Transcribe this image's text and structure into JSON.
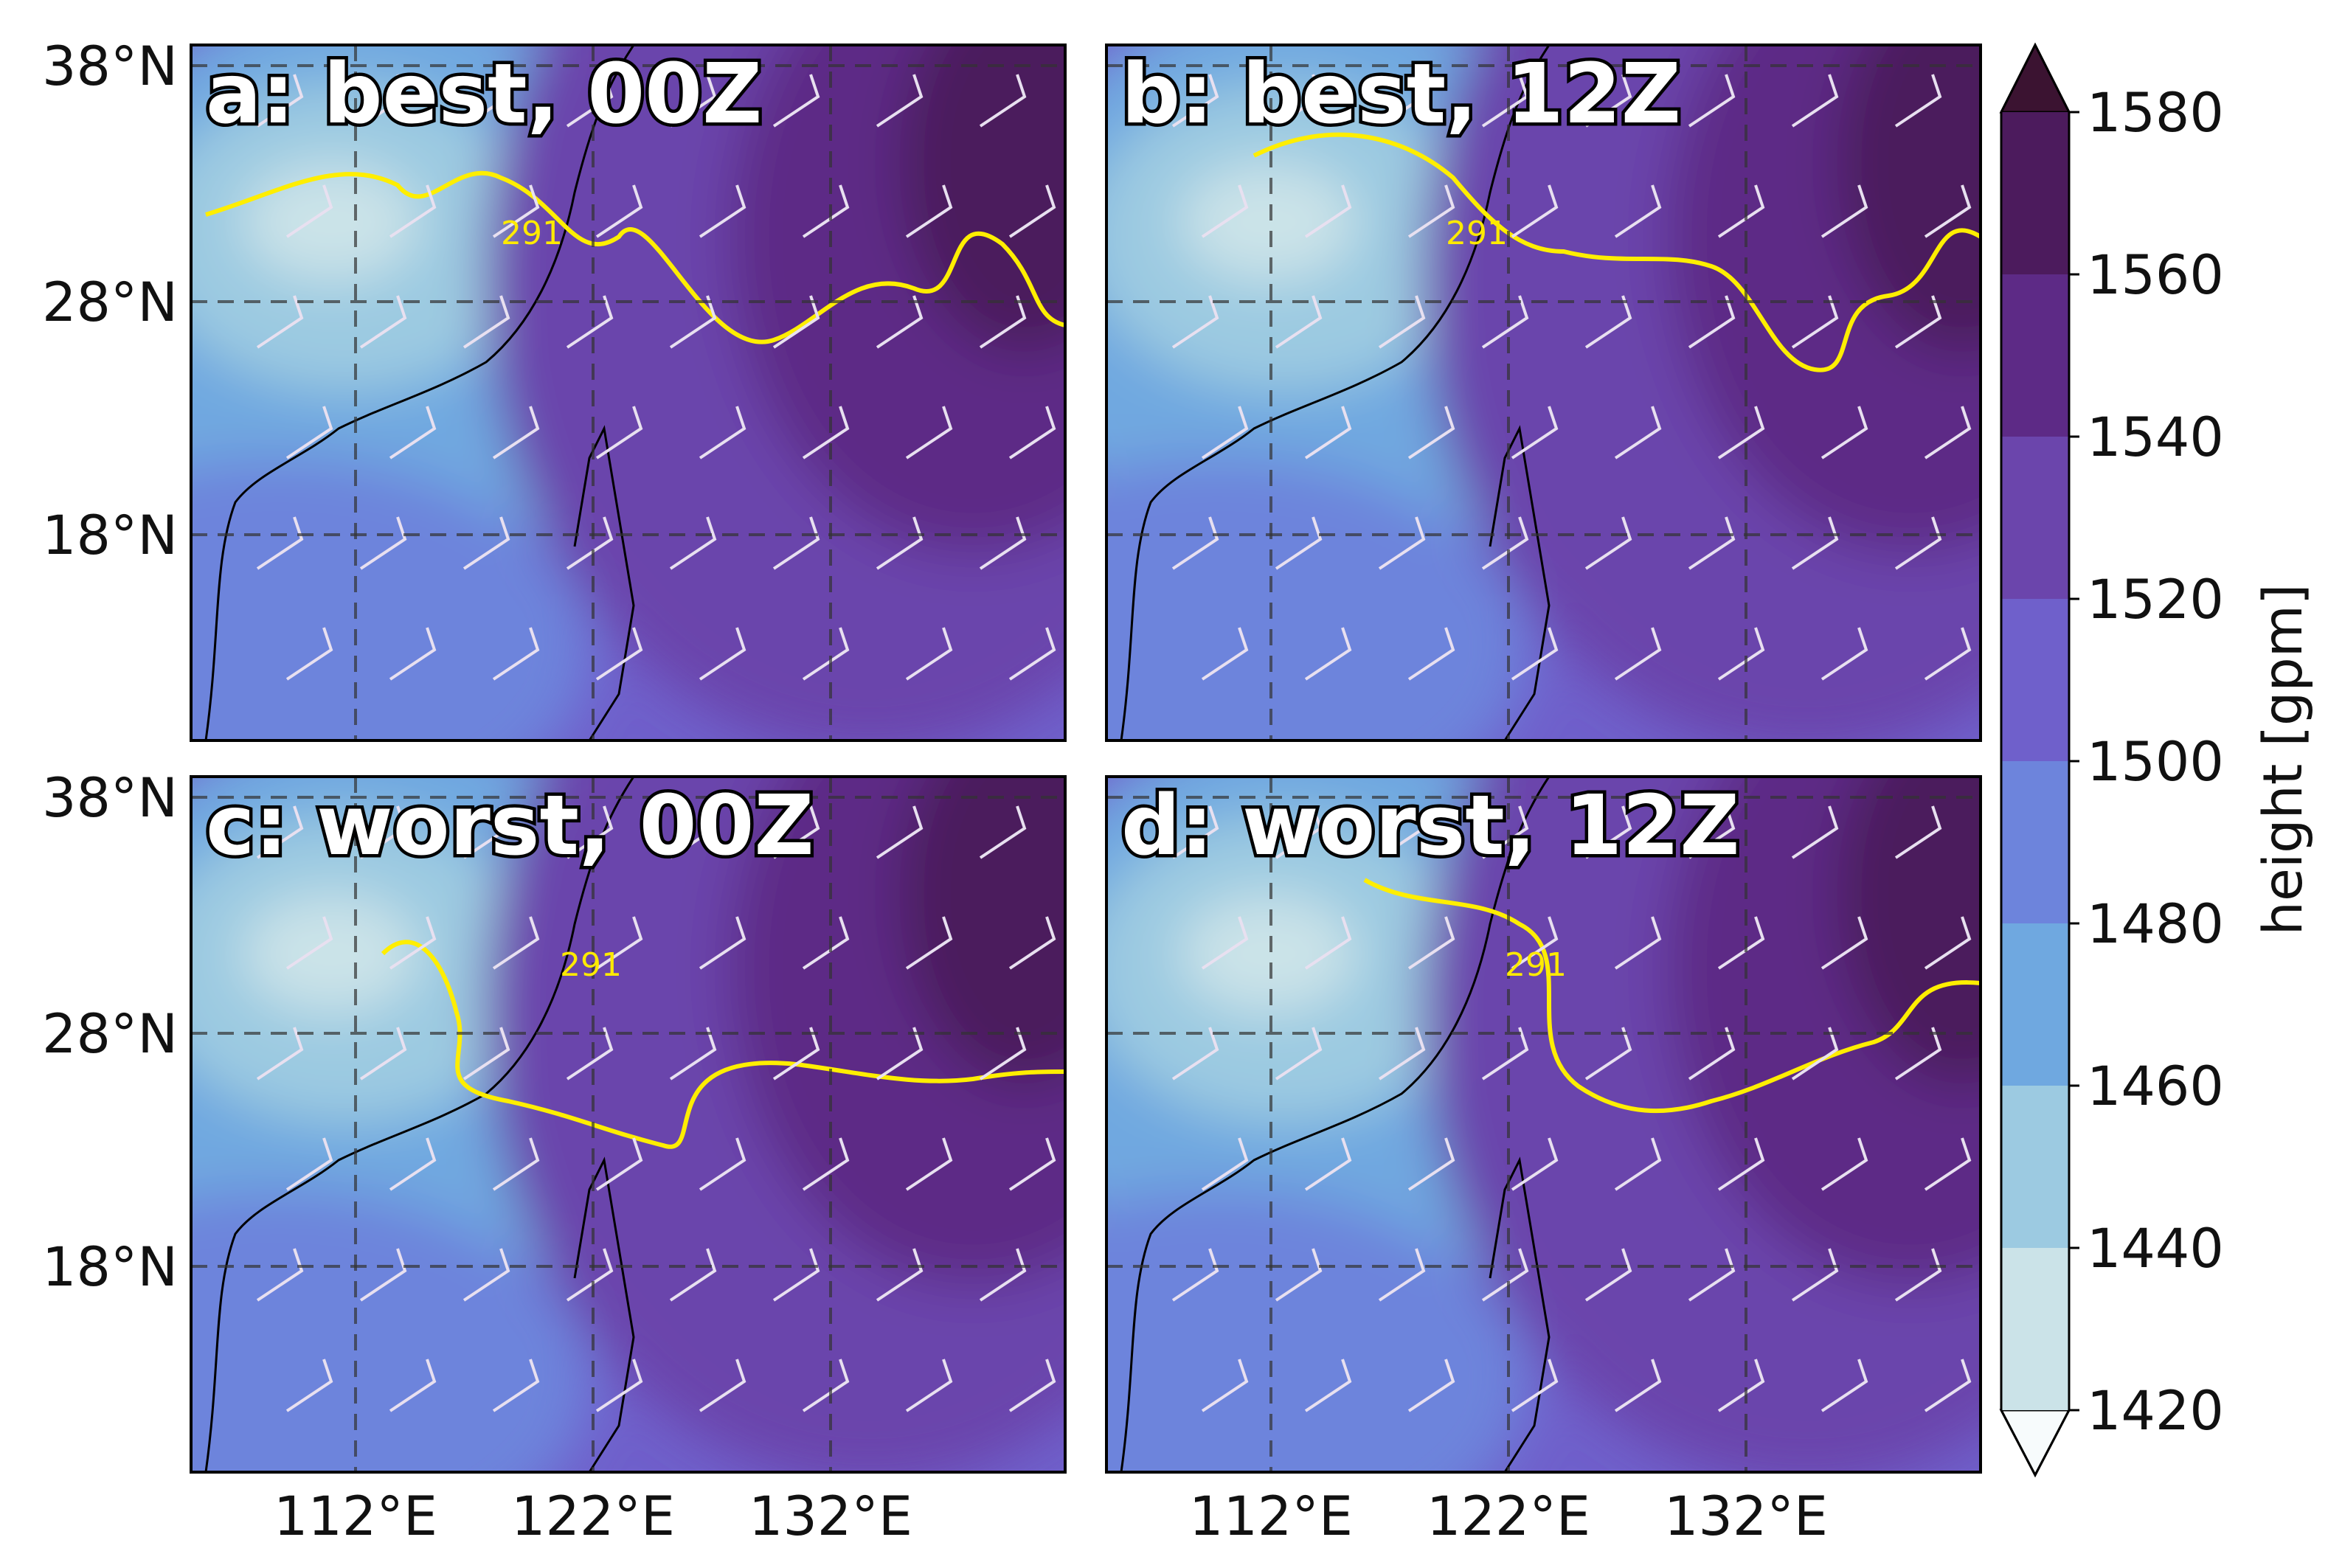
{
  "panels": [
    {
      "title": "a: best, 00Z"
    },
    {
      "title": "b: best, 12Z"
    },
    {
      "title": "c: worst, 00Z"
    },
    {
      "title": "d: worst, 12Z"
    }
  ],
  "lat_labels": [
    "38°N",
    "28°N",
    "18°N"
  ],
  "lon_labels": [
    "112°E",
    "122°E",
    "132°E"
  ],
  "contour_label": "291",
  "colorbar": {
    "label": "height [gpm]",
    "ticks": [
      1420,
      1440,
      1460,
      1480,
      1500,
      1520,
      1540,
      1560,
      1580
    ],
    "colors": [
      "#f7fbfc",
      "#cbe3e8",
      "#9ccae1",
      "#6fa8e0",
      "#6d84dc",
      "#6f60cb",
      "#6b45ac",
      "#5d2a86",
      "#4c1b5d",
      "#3b1331"
    ]
  }
}
